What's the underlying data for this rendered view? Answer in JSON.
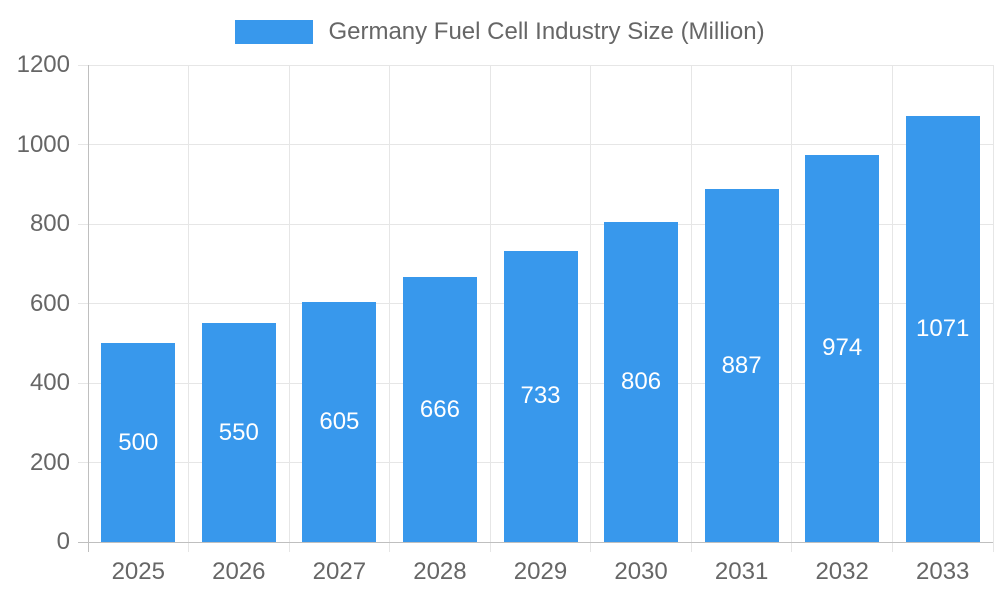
{
  "legend": {
    "label": "Germany Fuel Cell Industry Size (Million)"
  },
  "chart_data": {
    "type": "bar",
    "title": "",
    "xlabel": "",
    "ylabel": "",
    "categories": [
      "2025",
      "2026",
      "2027",
      "2028",
      "2029",
      "2030",
      "2031",
      "2032",
      "2033"
    ],
    "series": [
      {
        "name": "Germany Fuel Cell Industry Size (Million)",
        "values": [
          500,
          550,
          605,
          666,
          733,
          806,
          887,
          974,
          1071
        ]
      }
    ],
    "value_labels": [
      "500",
      "550",
      "605",
      "666",
      "733",
      "806",
      "887",
      "974",
      "1071"
    ],
    "ylim": [
      0,
      1200
    ],
    "yticks": [
      0,
      200,
      400,
      600,
      800,
      1000,
      1200
    ],
    "grid": true,
    "legend_position": "top",
    "colors": {
      "bar": "#3898EC",
      "value_label": "#FFFFFF",
      "axis_text": "#666666",
      "gridline": "#E6E6E6",
      "axis_line": "#BFBFBF",
      "background": "#FFFFFF"
    }
  }
}
